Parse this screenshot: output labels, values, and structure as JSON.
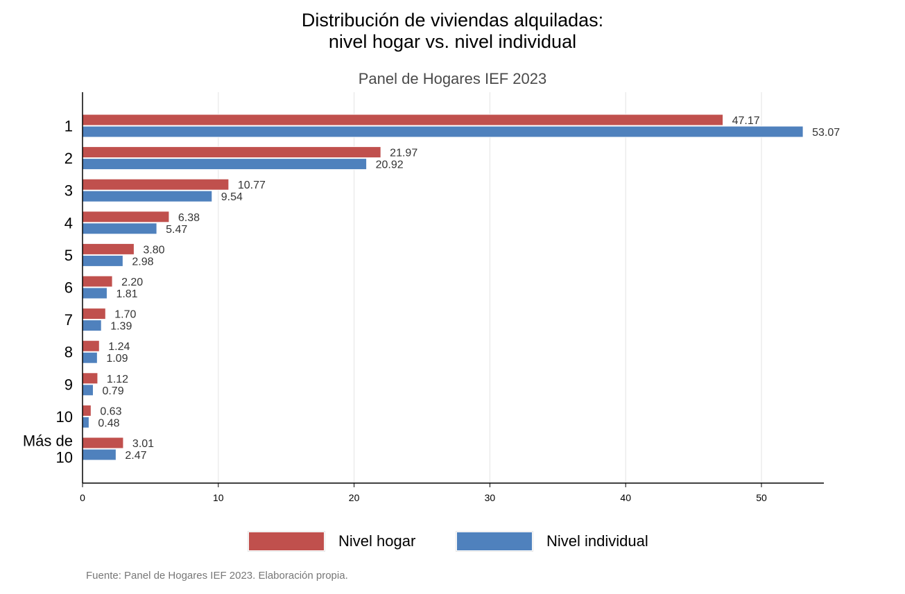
{
  "chart_data": {
    "type": "bar",
    "orientation": "horizontal",
    "title": [
      "Distribución de viviendas alquiladas:",
      "nivel hogar vs. nivel individual"
    ],
    "subtitle": "Panel de Hogares IEF 2023",
    "categories": [
      "1",
      "2",
      "3",
      "4",
      "5",
      "6",
      "7",
      "8",
      "9",
      "10",
      [
        "Más de",
        "10"
      ]
    ],
    "series": [
      {
        "name": "Nivel hogar",
        "color": "#c0504d",
        "values": [
          47.17,
          21.97,
          10.77,
          6.38,
          3.8,
          2.2,
          1.7,
          1.24,
          1.12,
          0.63,
          3.01
        ],
        "labels": [
          "47.17",
          "21.97",
          "10.77",
          "6.38",
          "3.80",
          "2.20",
          "1.70",
          "1.24",
          "1.12",
          "0.63",
          "3.01"
        ]
      },
      {
        "name": "Nivel individual",
        "color": "#4f81bd",
        "values": [
          53.07,
          20.92,
          9.54,
          5.47,
          2.98,
          1.81,
          1.39,
          1.09,
          0.79,
          0.48,
          2.47
        ],
        "labels": [
          "53.07",
          "20.92",
          "9.54",
          "5.47",
          "2.98",
          "1.81",
          "1.39",
          "1.09",
          "0.79",
          "0.48",
          "2.47"
        ]
      }
    ],
    "xlim": [
      0,
      54.5
    ],
    "xticks": [
      0,
      10,
      20,
      30,
      40,
      50
    ],
    "grid": "vertical",
    "legend_position": "bottom"
  },
  "source": "Fuente: Panel de Hogares IEF 2023. Elaboración propia."
}
